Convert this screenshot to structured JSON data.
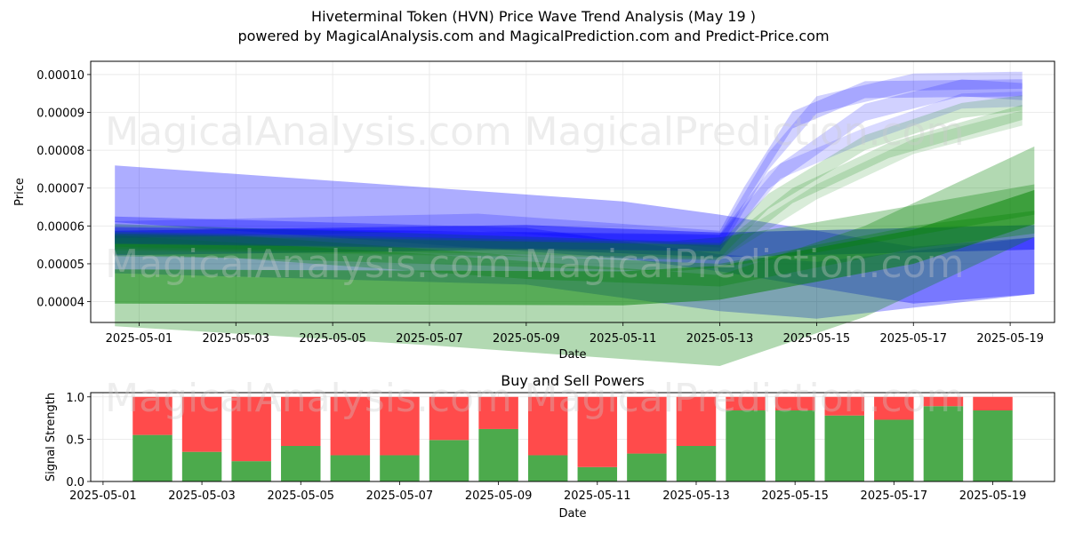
{
  "title": "Hiveterminal Token (HVN) Price Wave Trend Analysis (May 19 )",
  "subtitle": "powered by MagicalAnalysis.com and MagicalPrediction.com and Predict-Price.com",
  "watermarks": [
    "MagicalAnalysis.com",
    "MagicalPrediction.com"
  ],
  "colors": {
    "blue": "#0000ff",
    "green": "#008000",
    "buy": "#4caa4c",
    "sell": "#ff4b4b"
  },
  "chart_data": [
    {
      "type": "area",
      "title": "",
      "xlabel": "Date",
      "ylabel": "Price",
      "x_ticks": [
        "2025-05-01",
        "2025-05-03",
        "2025-05-05",
        "2025-05-07",
        "2025-05-09",
        "2025-05-11",
        "2025-05-13",
        "2025-05-15",
        "2025-05-17",
        "2025-05-19"
      ],
      "y_ticks": [
        "0.00004",
        "0.00005",
        "0.00006",
        "0.00007",
        "0.00008",
        "0.00009",
        "0.00010"
      ],
      "xlim": [
        "2025-04-30T00:00",
        "2025-05-19T22:00"
      ],
      "ylim": [
        3.45e-05,
        0.0001035
      ],
      "grid": true,
      "bands": [
        {
          "color": "blue",
          "opacity": 0.32,
          "points": [
            [
              "2025-04-30T12:00",
              6.85e-05
            ],
            [
              "2025-05-11T00:00",
              5.9e-05
            ],
            [
              "2025-05-13T00:00",
              5.55e-05
            ],
            [
              "2025-05-17T00:00",
              4.7e-05
            ],
            [
              "2025-05-19T12:00",
              4.95e-05
            ]
          ],
          "width": 1.5e-05
        },
        {
          "color": "blue",
          "opacity": 0.45,
          "points": [
            [
              "2025-04-30T12:00",
              5.55e-05
            ],
            [
              "2025-05-09T00:00",
              5.7e-05
            ],
            [
              "2025-05-13T00:00",
              5.5e-05
            ],
            [
              "2025-05-19T12:00",
              5.7e-05
            ]
          ],
          "width": 6.5e-06
        },
        {
          "color": "blue",
          "opacity": 0.3,
          "points": [
            [
              "2025-04-30T12:00",
              5.5e-05
            ],
            [
              "2025-05-09T00:00",
              5.2e-05
            ],
            [
              "2025-05-13T00:00",
              4.5e-05
            ],
            [
              "2025-05-15T00:00",
              4.3e-05
            ],
            [
              "2025-05-19T12:00",
              4.95e-05
            ]
          ],
          "width": 1.5e-05
        },
        {
          "color": "green",
          "opacity": 0.3,
          "points": [
            [
              "2025-04-30T12:00",
              5.5e-05
            ],
            [
              "2025-05-03T00:00",
              5.45e-05
            ],
            [
              "2025-05-09T00:00",
              4.9e-05
            ],
            [
              "2025-05-13T00:00",
              4.7e-05
            ],
            [
              "2025-05-17T00:00",
              5.7e-05
            ],
            [
              "2025-05-19T12:00",
              6.1e-05
            ]
          ],
          "width": 6e-06
        },
        {
          "color": "green",
          "opacity": 0.5,
          "points": [
            [
              "2025-04-30T12:00",
              4.4e-05
            ],
            [
              "2025-05-11T00:00",
              4.35e-05
            ],
            [
              "2025-05-13T00:00",
              4.5e-05
            ],
            [
              "2025-05-17T00:00",
              5.45e-05
            ],
            [
              "2025-05-19T12:00",
              6.5e-05
            ]
          ],
          "width": 9e-06
        },
        {
          "color": "green",
          "opacity": 0.3,
          "points": [
            [
              "2025-04-30T12:00",
              4.55e-05
            ],
            [
              "2025-05-07T00:00",
              4.05e-05
            ],
            [
              "2025-05-13T00:00",
              3.5e-05
            ],
            [
              "2025-05-16T00:00",
              4.8e-05
            ],
            [
              "2025-05-19T12:00",
              6.9e-05
            ]
          ],
          "width": 2.4e-05
        },
        {
          "color": "green",
          "opacity": 0.3,
          "points": [
            [
              "2025-04-30T12:00",
              5.65e-05
            ],
            [
              "2025-05-12T00:00",
              5.2e-05
            ],
            [
              "2025-05-13T00:00",
              5.3e-05
            ],
            [
              "2025-05-15T00:00",
              5.7e-05
            ],
            [
              "2025-05-19T12:00",
              6.7e-05
            ]
          ],
          "width": 8e-06
        },
        {
          "color": "blue",
          "opacity": 0.2,
          "points": [
            [
              "2025-04-30T12:00",
              5.9e-05
            ],
            [
              "2025-05-08T00:00",
              6.1e-05
            ],
            [
              "2025-05-13T00:00",
              5.65e-05
            ],
            [
              "2025-05-13T12:00",
              6.8e-05
            ],
            [
              "2025-05-14T12:00",
              8.8e-05
            ],
            [
              "2025-05-16T00:00",
              9.6e-05
            ],
            [
              "2025-05-19T06:00",
              9.65e-05
            ]
          ],
          "width": 4.5e-06
        },
        {
          "color": "blue",
          "opacity": 0.18,
          "points": [
            [
              "2025-04-30T12:00",
              5.75e-05
            ],
            [
              "2025-05-13T00:00",
              5.55e-05
            ],
            [
              "2025-05-14T00:00",
              7.7e-05
            ],
            [
              "2025-05-15T00:00",
              9.2e-05
            ],
            [
              "2025-05-17T00:00",
              9.8e-05
            ],
            [
              "2025-05-19T06:00",
              9.85e-05
            ]
          ],
          "width": 4.5e-06
        },
        {
          "color": "blue",
          "opacity": 0.18,
          "points": [
            [
              "2025-04-30T12:00",
              5.75e-05
            ],
            [
              "2025-05-13T00:00",
              5.55e-05
            ],
            [
              "2025-05-14T00:00",
              7.2e-05
            ],
            [
              "2025-05-16T00:00",
              9e-05
            ],
            [
              "2025-05-18T00:00",
              9.65e-05
            ],
            [
              "2025-05-19T06:00",
              9.55e-05
            ]
          ],
          "width": 4.5e-06
        },
        {
          "color": "blue",
          "opacity": 0.15,
          "points": [
            [
              "2025-04-30T12:00",
              5.75e-05
            ],
            [
              "2025-05-13T00:00",
              5.55e-05
            ],
            [
              "2025-05-14T06:00",
              7.45e-05
            ],
            [
              "2025-05-16T00:00",
              8.4e-05
            ],
            [
              "2025-05-18T00:00",
              9.3e-05
            ],
            [
              "2025-05-19T06:00",
              9.35e-05
            ]
          ],
          "width": 4e-06
        },
        {
          "color": "green",
          "opacity": 0.18,
          "points": [
            [
              "2025-04-30T12:00",
              5.65e-05
            ],
            [
              "2025-05-13T00:00",
              5.35e-05
            ],
            [
              "2025-05-14T00:00",
              6.65e-05
            ],
            [
              "2025-05-16T00:00",
              8.2e-05
            ],
            [
              "2025-05-18T00:00",
              9.05e-05
            ],
            [
              "2025-05-19T06:00",
              9.25e-05
            ]
          ],
          "width": 4e-06
        },
        {
          "color": "green",
          "opacity": 0.18,
          "points": [
            [
              "2025-04-30T12:00",
              5.6e-05
            ],
            [
              "2025-05-13T00:00",
              5.3e-05
            ],
            [
              "2025-05-14T12:00",
              6.8e-05
            ],
            [
              "2025-05-16T12:00",
              8e-05
            ],
            [
              "2025-05-19T06:00",
              9e-05
            ]
          ],
          "width": 4e-06
        },
        {
          "color": "green",
          "opacity": 0.15,
          "points": [
            [
              "2025-04-30T12:00",
              5.55e-05
            ],
            [
              "2025-05-13T00:00",
              5.3e-05
            ],
            [
              "2025-05-15T00:00",
              6.9e-05
            ],
            [
              "2025-05-17T00:00",
              8.1e-05
            ],
            [
              "2025-05-19T06:00",
              8.85e-05
            ]
          ],
          "width": 4e-06
        }
      ]
    },
    {
      "type": "bar",
      "title": "Buy and Sell Powers",
      "xlabel": "Date",
      "ylabel": "Signal Strength",
      "x_ticks": [
        "2025-05-01",
        "2025-05-03",
        "2025-05-05",
        "2025-05-07",
        "2025-05-09",
        "2025-05-11",
        "2025-05-13",
        "2025-05-15",
        "2025-05-17",
        "2025-05-19"
      ],
      "y_ticks": [
        "0.0",
        "0.5",
        "1.0"
      ],
      "xlim": [
        "2025-04-30T18:00",
        "2025-05-20T06:00"
      ],
      "ylim": [
        0,
        1.05
      ],
      "grid": true,
      "categories": [
        "2025-05-02",
        "2025-05-03",
        "2025-05-04",
        "2025-05-05",
        "2025-05-06",
        "2025-05-07",
        "2025-05-08",
        "2025-05-09",
        "2025-05-10",
        "2025-05-11",
        "2025-05-12",
        "2025-05-13",
        "2025-05-14",
        "2025-05-15",
        "2025-05-16",
        "2025-05-17",
        "2025-05-18",
        "2025-05-19"
      ],
      "series": [
        {
          "name": "Buy",
          "values": [
            0.55,
            0.35,
            0.24,
            0.42,
            0.31,
            0.31,
            0.49,
            0.62,
            0.31,
            0.17,
            0.33,
            0.42,
            0.84,
            0.84,
            0.78,
            0.73,
            0.89,
            0.84
          ]
        },
        {
          "name": "Sell",
          "values": [
            0.45,
            0.65,
            0.76,
            0.58,
            0.69,
            0.69,
            0.51,
            0.38,
            0.69,
            0.83,
            0.67,
            0.58,
            0.16,
            0.16,
            0.22,
            0.27,
            0.11,
            0.16
          ]
        }
      ]
    }
  ]
}
